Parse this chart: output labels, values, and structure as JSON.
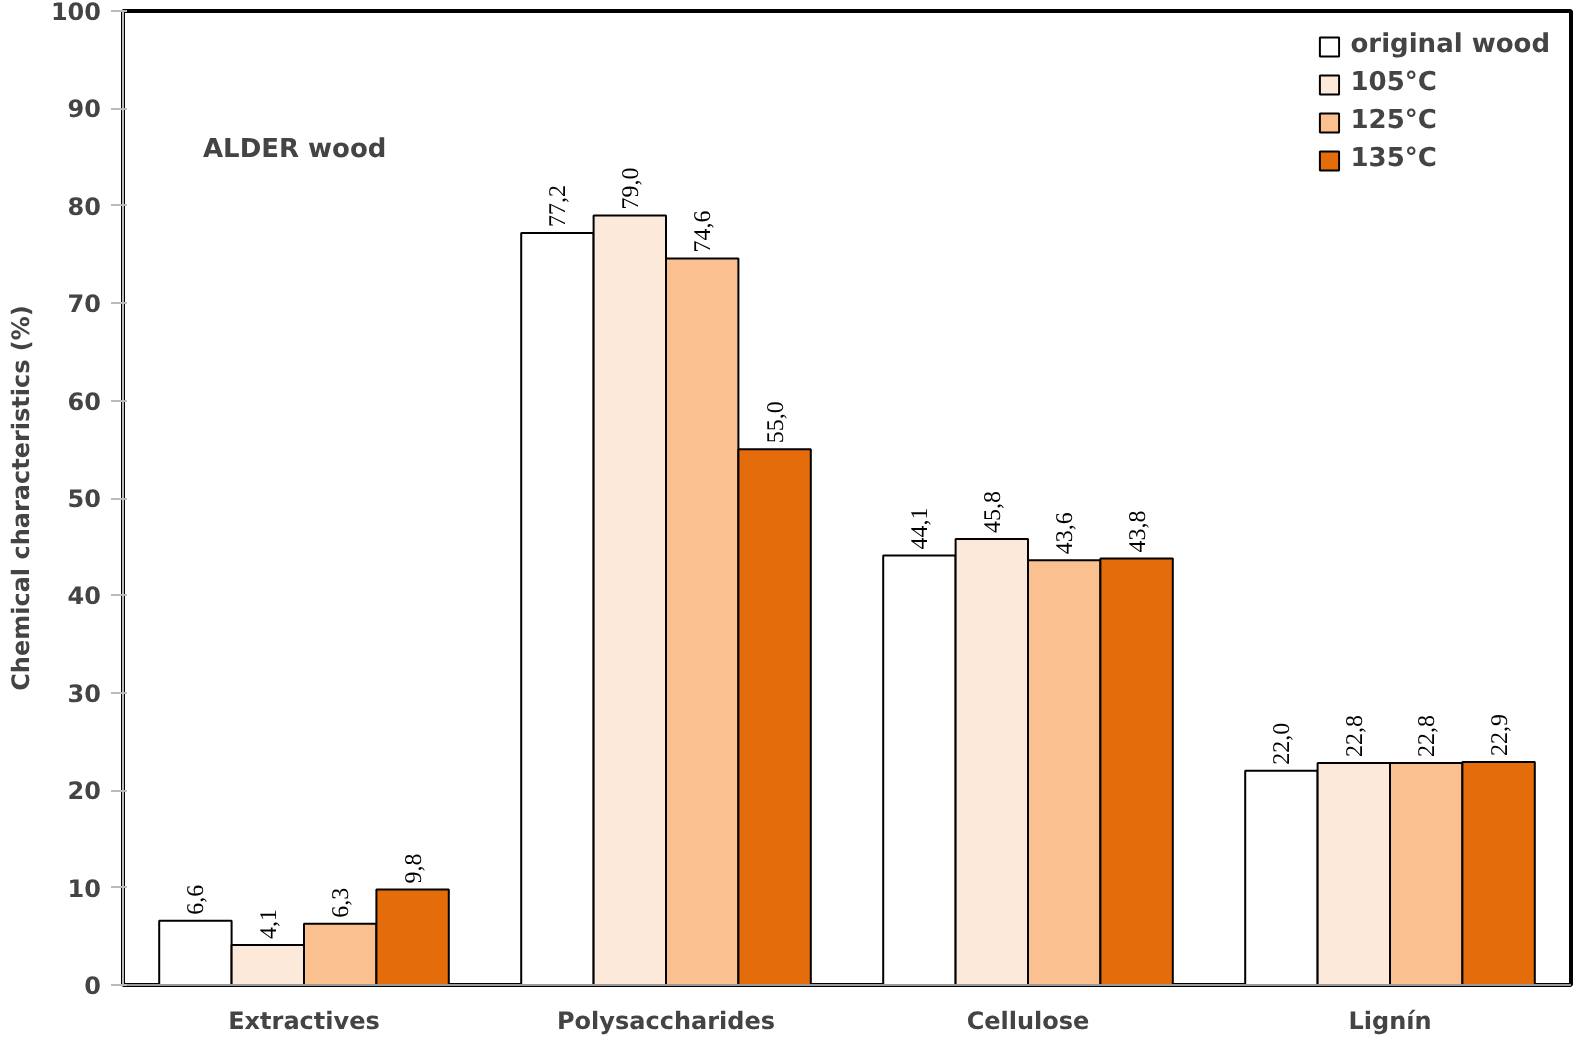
{
  "chart_data": {
    "type": "bar",
    "ylabel": "Chemical characteristics (%)",
    "annotations": [
      "ALDER wood"
    ],
    "categories": [
      "Extractives",
      "Polysaccharides",
      "Cellulose",
      "Lignín"
    ],
    "series": [
      {
        "name": "original wood",
        "color": "#ffffff",
        "values": [
          6.6,
          77.2,
          44.1,
          22.0
        ],
        "value_labels": [
          "6,6",
          "77,2",
          "44,1",
          "22,0"
        ]
      },
      {
        "name": "105°C",
        "color": "#fde9d9",
        "values": [
          4.1,
          79.0,
          45.8,
          22.8
        ],
        "value_labels": [
          "4,1",
          "79,0",
          "45,8",
          "22,8"
        ]
      },
      {
        "name": "125°C",
        "color": "#fac090",
        "values": [
          6.3,
          74.6,
          43.6,
          22.8
        ],
        "value_labels": [
          "6,3",
          "74,6",
          "43,6",
          "22,8"
        ]
      },
      {
        "name": "135°C",
        "color": "#e46c0a",
        "values": [
          9.8,
          55.0,
          43.8,
          22.9
        ],
        "value_labels": [
          "9,8",
          "55,0",
          "43,8",
          "22,9"
        ]
      }
    ],
    "ylim": [
      0,
      100
    ],
    "yticks": [
      0,
      10,
      20,
      30,
      40,
      50,
      60,
      70,
      80,
      90,
      100
    ],
    "grid": false,
    "legend": "top right"
  }
}
